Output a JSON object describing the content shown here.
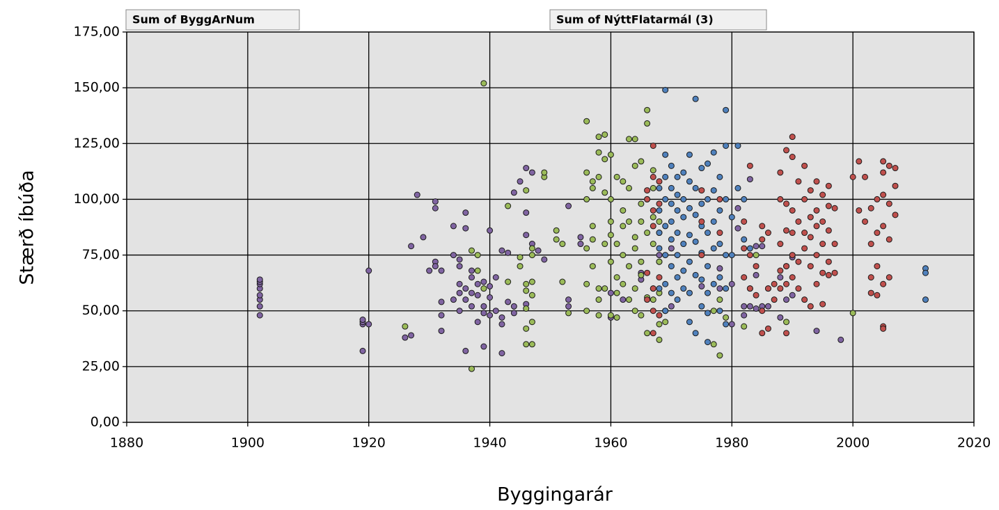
{
  "chart_data": {
    "type": "scatter",
    "buttons": [
      "Sum of ByggArNum",
      "Sum of NýttFlatarmál (3)"
    ],
    "xlabel": "Byggingarár",
    "ylabel": "Stærð íbúða",
    "xlim": [
      1880,
      2020
    ],
    "xticks": [
      1880,
      1900,
      1920,
      1940,
      1960,
      1980,
      2000,
      2020
    ],
    "ylim": [
      0,
      175
    ],
    "yticks": [
      {
        "value": 0,
        "label": "0,00"
      },
      {
        "value": 25,
        "label": "25,00"
      },
      {
        "value": 50,
        "label": "50,00"
      },
      {
        "value": 75,
        "label": "75,00"
      },
      {
        "value": 100,
        "label": "100,00"
      },
      {
        "value": 125,
        "label": "125,00"
      },
      {
        "value": 150,
        "label": "150,00"
      },
      {
        "value": 175,
        "label": "175,00"
      }
    ],
    "grid": true,
    "series": [
      {
        "color": "#8064a2",
        "x": [
          1902,
          1902,
          1902,
          1902,
          1902,
          1902,
          1902,
          1902,
          1919,
          1919,
          1919,
          1919,
          1920,
          1920,
          1926,
          1927,
          1927,
          1928,
          1929,
          1930,
          1931,
          1931,
          1931,
          1931,
          1932,
          1932,
          1932,
          1932,
          1934,
          1934,
          1934,
          1935,
          1935,
          1935,
          1935,
          1935,
          1936,
          1936,
          1936,
          1936,
          1936,
          1937,
          1937,
          1937,
          1937,
          1938,
          1938,
          1938,
          1939,
          1939,
          1939,
          1939,
          1940,
          1940,
          1940,
          1940,
          1941,
          1941,
          1942,
          1942,
          1942,
          1942,
          1943,
          1943,
          1944,
          1944,
          1944,
          1945,
          1946,
          1946,
          1946,
          1946,
          1947,
          1947,
          1948,
          1949,
          1953,
          1953,
          1953,
          1955,
          1955,
          1960,
          1960,
          1962,
          1965,
          1965,
          1968,
          1968,
          1968,
          1970,
          1970,
          1975,
          1978,
          1978,
          1980,
          1980,
          1981,
          1981,
          1982,
          1982,
          1983,
          1983,
          1984,
          1984,
          1984,
          1985,
          1985,
          1986,
          1986,
          1988,
          1988,
          1989,
          1989,
          1990,
          1990,
          1994,
          1998
        ],
        "values": [
          48,
          52,
          55,
          57,
          60,
          62,
          63,
          64,
          32,
          44,
          45,
          46,
          44,
          68,
          38,
          39,
          79,
          102,
          83,
          68,
          72,
          70,
          96,
          99,
          41,
          48,
          54,
          68,
          55,
          75,
          88,
          58,
          62,
          70,
          73,
          50,
          60,
          55,
          94,
          87,
          32,
          65,
          58,
          68,
          52,
          57,
          62,
          45,
          34,
          52,
          49,
          63,
          48,
          86,
          56,
          61,
          50,
          65,
          31,
          77,
          47,
          44,
          76,
          54,
          103,
          52,
          49,
          108,
          114,
          84,
          94,
          53,
          112,
          80,
          77,
          73,
          97,
          55,
          52,
          83,
          80,
          47,
          58,
          55,
          67,
          64,
          75,
          72,
          85,
          78,
          52,
          61,
          69,
          60,
          62,
          44,
          96,
          87,
          52,
          48,
          52,
          109,
          51,
          66,
          79,
          52,
          79,
          52,
          60,
          47,
          65,
          70,
          55,
          57,
          74,
          41,
          37
        ]
      },
      {
        "color": "#9bbb59",
        "x": [
          1926,
          1937,
          1937,
          1938,
          1938,
          1939,
          1939,
          1943,
          1943,
          1945,
          1945,
          1946,
          1946,
          1946,
          1946,
          1946,
          1946,
          1947,
          1947,
          1947,
          1947,
          1947,
          1947,
          1949,
          1949,
          1951,
          1951,
          1952,
          1952,
          1953,
          1956,
          1956,
          1956,
          1956,
          1956,
          1956,
          1957,
          1957,
          1957,
          1957,
          1957,
          1958,
          1958,
          1958,
          1958,
          1958,
          1958,
          1959,
          1959,
          1959,
          1959,
          1959,
          1960,
          1960,
          1960,
          1960,
          1960,
          1960,
          1961,
          1961,
          1961,
          1961,
          1961,
          1962,
          1962,
          1962,
          1962,
          1962,
          1963,
          1963,
          1963,
          1963,
          1963,
          1964,
          1964,
          1964,
          1964,
          1964,
          1964,
          1965,
          1965,
          1965,
          1965,
          1965,
          1965,
          1966,
          1966,
          1966,
          1966,
          1966,
          1966,
          1967,
          1967,
          1967,
          1967,
          1967,
          1967,
          1968,
          1968,
          1968,
          1968,
          1968,
          1969,
          1969,
          1977,
          1977,
          1978,
          1978,
          1979,
          1982,
          1984,
          1989,
          2000
        ],
        "values": [
          43,
          24,
          77,
          75,
          68,
          152,
          60,
          97,
          63,
          70,
          74,
          104,
          35,
          42,
          59,
          62,
          51,
          35,
          45,
          57,
          63,
          78,
          75,
          110,
          112,
          86,
          82,
          63,
          80,
          49,
          135,
          112,
          100,
          78,
          62,
          50,
          88,
          82,
          105,
          108,
          70,
          128,
          121,
          110,
          60,
          48,
          55,
          129,
          118,
          103,
          80,
          60,
          120,
          84,
          72,
          48,
          100,
          90,
          110,
          80,
          65,
          58,
          47,
          108,
          95,
          88,
          75,
          62,
          127,
          105,
          90,
          70,
          55,
          127,
          115,
          83,
          78,
          60,
          50,
          117,
          98,
          90,
          72,
          66,
          48,
          140,
          134,
          100,
          85,
          56,
          40,
          113,
          105,
          92,
          80,
          60,
          55,
          90,
          72,
          58,
          37,
          44,
          45,
          50,
          35,
          50,
          30,
          55,
          47,
          43,
          75,
          45,
          49
        ]
      },
      {
        "color": "#4f81bd",
        "x": [
          1968,
          1968,
          1968,
          1968,
          1968,
          1969,
          1969,
          1969,
          1969,
          1969,
          1969,
          1969,
          1969,
          1970,
          1970,
          1970,
          1970,
          1970,
          1970,
          1970,
          1971,
          1971,
          1971,
          1971,
          1971,
          1971,
          1971,
          1972,
          1972,
          1972,
          1972,
          1972,
          1972,
          1973,
          1973,
          1973,
          1973,
          1973,
          1973,
          1973,
          1974,
          1974,
          1974,
          1974,
          1974,
          1974,
          1975,
          1975,
          1975,
          1975,
          1975,
          1975,
          1976,
          1976,
          1976,
          1976,
          1976,
          1976,
          1976,
          1977,
          1977,
          1977,
          1977,
          1977,
          1978,
          1978,
          1978,
          1978,
          1978,
          1979,
          1979,
          1979,
          1979,
          1979,
          1979,
          1980,
          1980,
          1981,
          1981,
          1982,
          1982,
          1983,
          1983,
          2012,
          2012,
          2012
        ],
        "values": [
          85,
          95,
          105,
          78,
          60,
          149,
          120,
          110,
          100,
          88,
          75,
          62,
          50,
          115,
          105,
          98,
          90,
          82,
          70,
          58,
          110,
          102,
          95,
          85,
          75,
          65,
          55,
          112,
          100,
          92,
          80,
          68,
          60,
          120,
          108,
          96,
          84,
          72,
          58,
          45,
          145,
          105,
          93,
          81,
          66,
          40,
          114,
          98,
          88,
          76,
          64,
          52,
          116,
          100,
          85,
          70,
          58,
          49,
          36,
          121,
          104,
          90,
          78,
          62,
          110,
          95,
          80,
          65,
          50,
          140,
          124,
          100,
          75,
          60,
          44,
          92,
          75,
          124,
          105,
          100,
          82,
          78,
          60,
          69,
          67,
          55
        ]
      },
      {
        "color": "#c0504d",
        "x": [
          1966,
          1966,
          1966,
          1966,
          1967,
          1967,
          1967,
          1967,
          1967,
          1967,
          1967,
          1968,
          1968,
          1968,
          1968,
          1975,
          1975,
          1975,
          1978,
          1978,
          1982,
          1982,
          1982,
          1983,
          1983,
          1983,
          1984,
          1984,
          1985,
          1985,
          1985,
          1985,
          1986,
          1986,
          1986,
          1987,
          1987,
          1988,
          1988,
          1988,
          1988,
          1988,
          1989,
          1989,
          1989,
          1989,
          1989,
          1989,
          1990,
          1990,
          1990,
          1990,
          1990,
          1990,
          1991,
          1991,
          1991,
          1991,
          1992,
          1992,
          1992,
          1992,
          1992,
          1993,
          1993,
          1993,
          1993,
          1993,
          1994,
          1994,
          1994,
          1994,
          1994,
          1995,
          1995,
          1995,
          1995,
          1995,
          1996,
          1996,
          1996,
          1996,
          1996,
          1997,
          1997,
          1997,
          2000,
          2001,
          2001,
          2002,
          2002,
          2003,
          2003,
          2003,
          2003,
          2004,
          2004,
          2004,
          2004,
          2005,
          2005,
          2005,
          2005,
          2005,
          2005,
          2005,
          2006,
          2006,
          2006,
          2006,
          2007,
          2007,
          2007
        ],
        "values": [
          104,
          100,
          67,
          55,
          124,
          110,
          95,
          88,
          60,
          50,
          40,
          108,
          98,
          65,
          48,
          104,
          90,
          75,
          100,
          85,
          90,
          78,
          65,
          115,
          75,
          60,
          70,
          57,
          88,
          82,
          50,
          40,
          85,
          60,
          42,
          62,
          55,
          112,
          100,
          80,
          68,
          60,
          122,
          98,
          86,
          70,
          62,
          40,
          128,
          119,
          95,
          85,
          75,
          65,
          108,
          90,
          72,
          60,
          115,
          100,
          85,
          78,
          55,
          104,
          92,
          83,
          70,
          52,
          108,
          95,
          88,
          75,
          62,
          102,
          90,
          80,
          67,
          53,
          106,
          97,
          86,
          72,
          66,
          96,
          80,
          67,
          110,
          117,
          95,
          110,
          90,
          96,
          80,
          65,
          58,
          100,
          85,
          70,
          57,
          117,
          112,
          102,
          88,
          62,
          43,
          42,
          115,
          98,
          82,
          65,
          114,
          106,
          93
        ]
      }
    ]
  }
}
